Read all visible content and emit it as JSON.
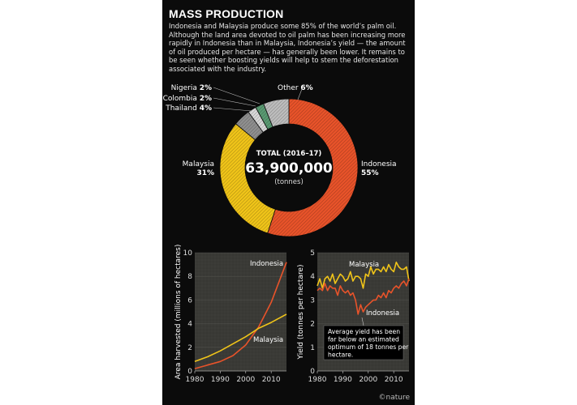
{
  "infographic": {
    "title": "MASS PRODUCTION",
    "intro": "Indonesia and Malaysia produce some 85% of the world’s palm oil. Although the land area devoted to oil palm has been increasing more rapidly in Indonesia than in Malaysia, Indonesia’s yield — the amount of oil produced per hectare — has generally been lower. It remains to be seen whether boosting yields will help to stem the deforestation associated with the industry.",
    "credit": "©nature"
  },
  "colors": {
    "background": "#0b0b0b",
    "indonesia": "#e8532a",
    "malaysia": "#f0c419",
    "thailand": "#8f8f8f",
    "colombia": "#d9d9d9",
    "nigeria": "#5a9a72",
    "other": "#bdbdbd",
    "plot_bg": "#3a3a36"
  },
  "chart_data": [
    {
      "type": "pie",
      "center_title": "TOTAL (2016–17)",
      "center_value": "63,900,000",
      "center_unit": "(tonnes)",
      "slices": [
        {
          "name": "Indonesia",
          "value": 55,
          "label": "55%"
        },
        {
          "name": "Malaysia",
          "value": 31,
          "label": "31%"
        },
        {
          "name": "Thailand",
          "value": 4,
          "label": "4%"
        },
        {
          "name": "Colombia",
          "value": 2,
          "label": "2%"
        },
        {
          "name": "Nigeria",
          "value": 2,
          "label": "2%"
        },
        {
          "name": "Other",
          "value": 6,
          "label": "6%"
        }
      ]
    },
    {
      "type": "line",
      "ylabel": "Area harvested (millions of hectares)",
      "xlim": [
        1980,
        2016
      ],
      "ylim": [
        0,
        10
      ],
      "xticks": [
        1980,
        1990,
        2000,
        2010
      ],
      "yticks": [
        0,
        2,
        4,
        6,
        8,
        10
      ],
      "series": [
        {
          "name": "Indonesia",
          "x": [
            1980,
            1985,
            1990,
            1995,
            2000,
            2005,
            2010,
            2016
          ],
          "values": [
            0.2,
            0.5,
            0.8,
            1.3,
            2.2,
            3.7,
            5.8,
            9.2
          ]
        },
        {
          "name": "Malaysia",
          "x": [
            1980,
            1985,
            1990,
            1995,
            2000,
            2005,
            2010,
            2016
          ],
          "values": [
            0.8,
            1.2,
            1.7,
            2.3,
            2.9,
            3.6,
            4.1,
            4.8
          ]
        }
      ]
    },
    {
      "type": "line",
      "ylabel": "Yield (tonnes per hectare)",
      "xlim": [
        1980,
        2016
      ],
      "ylim": [
        0,
        5
      ],
      "xticks": [
        1980,
        1990,
        2000,
        2010
      ],
      "yticks": [
        0,
        1,
        2,
        3,
        4,
        5
      ],
      "annotation": "Average yield has been far below an estimated optimum of 18 tonnes per hectare.",
      "series": [
        {
          "name": "Malaysia",
          "x": [
            1980,
            1981,
            1982,
            1983,
            1984,
            1985,
            1986,
            1987,
            1988,
            1989,
            1990,
            1991,
            1992,
            1993,
            1994,
            1995,
            1996,
            1997,
            1998,
            1999,
            2000,
            2001,
            2002,
            2003,
            2004,
            2005,
            2006,
            2007,
            2008,
            2009,
            2010,
            2011,
            2012,
            2013,
            2014,
            2015,
            2016
          ],
          "values": [
            3.6,
            3.9,
            3.5,
            3.9,
            4.0,
            3.8,
            4.1,
            3.7,
            3.9,
            4.1,
            4.0,
            3.8,
            3.9,
            4.2,
            3.8,
            4.0,
            4.0,
            3.9,
            3.5,
            4.1,
            4.0,
            4.4,
            4.1,
            4.3,
            4.3,
            4.2,
            4.4,
            4.2,
            4.5,
            4.3,
            4.2,
            4.6,
            4.4,
            4.3,
            4.3,
            4.4,
            3.8
          ]
        },
        {
          "name": "Indonesia",
          "x": [
            1980,
            1981,
            1982,
            1983,
            1984,
            1985,
            1986,
            1987,
            1988,
            1989,
            1990,
            1991,
            1992,
            1993,
            1994,
            1995,
            1996,
            1997,
            1998,
            1999,
            2000,
            2001,
            2002,
            2003,
            2004,
            2005,
            2006,
            2007,
            2008,
            2009,
            2010,
            2011,
            2012,
            2013,
            2014,
            2015,
            2016
          ],
          "values": [
            3.4,
            3.5,
            3.4,
            3.7,
            3.4,
            3.6,
            3.5,
            3.5,
            3.2,
            3.6,
            3.4,
            3.3,
            3.4,
            3.2,
            3.3,
            3.0,
            2.4,
            2.8,
            2.5,
            2.7,
            2.8,
            2.9,
            3.0,
            3.0,
            3.2,
            3.1,
            3.3,
            3.1,
            3.4,
            3.3,
            3.5,
            3.6,
            3.5,
            3.7,
            3.8,
            3.6,
            3.9
          ]
        }
      ]
    }
  ]
}
